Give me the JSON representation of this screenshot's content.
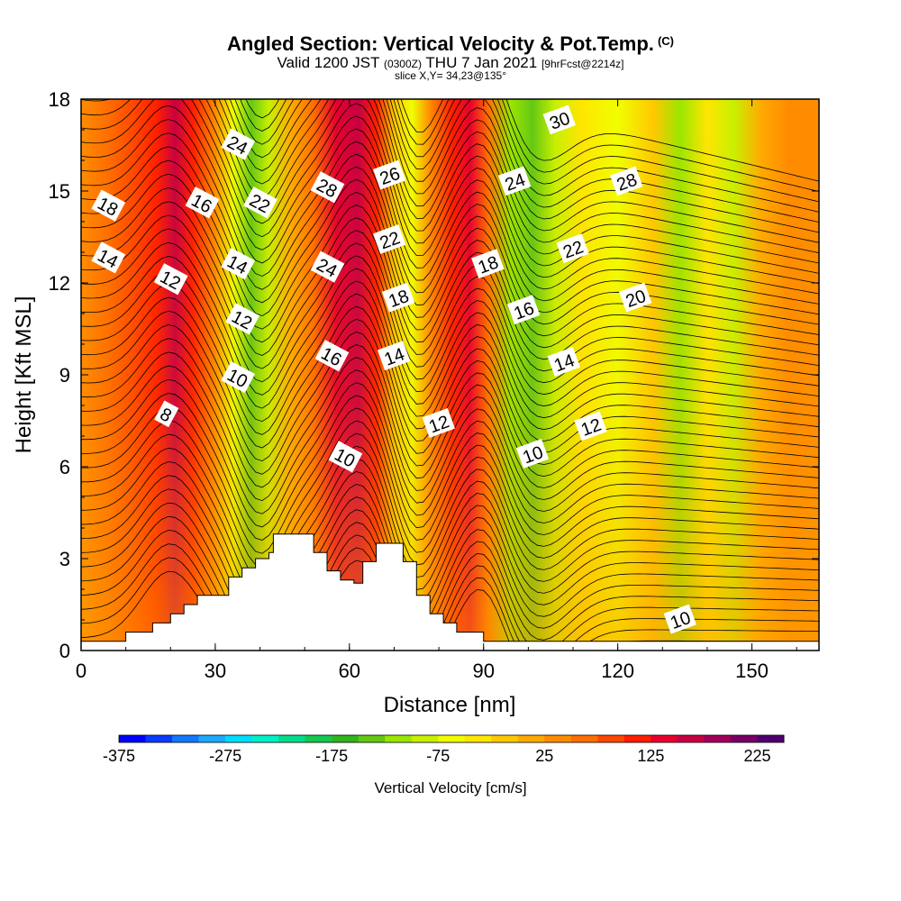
{
  "header": {
    "title": "Angled Section: Vertical Velocity & Pot.Temp.",
    "copyright": "(C)",
    "valid_prefix": "Valid 1200 JST",
    "valid_utc": "(0300Z)",
    "valid_date": "THU 7 Jan 2021",
    "forecast": "[9hrFcst@2214z]",
    "slice": "slice X,Y= 34,23@135°"
  },
  "chart_data": {
    "type": "heatmap",
    "title": "Angled Section: Vertical Velocity & Pot.Temp.",
    "xlabel": "Distance [nm]",
    "ylabel": "Height [Kft MSL]",
    "xlim": [
      0,
      165
    ],
    "ylim": [
      0,
      18
    ],
    "xticks": [
      "0",
      "30",
      "60",
      "90",
      "120",
      "150"
    ],
    "yticks": [
      "0",
      "3",
      "6",
      "9",
      "12",
      "15",
      "18"
    ],
    "colorbar": {
      "label": "Vertical Velocity [cm/s]",
      "min": -375,
      "max": 250,
      "step": 25,
      "tick_labels": [
        "-375",
        "-275",
        "-175",
        "-75",
        "25",
        "125",
        "225"
      ],
      "colors": [
        "#0000ff",
        "#0a3cff",
        "#1478ff",
        "#1eaaff",
        "#00ddff",
        "#00f0c8",
        "#00dc8c",
        "#14c850",
        "#32b41e",
        "#64c814",
        "#9be600",
        "#c8f000",
        "#f0ff00",
        "#ffe600",
        "#ffc800",
        "#ffaa00",
        "#ff8c00",
        "#ff6e00",
        "#ff4600",
        "#ff1e00",
        "#e6002d",
        "#c80041",
        "#a0005a",
        "#780064",
        "#50006e"
      ]
    },
    "terrain": [
      [
        0,
        0.3
      ],
      [
        10,
        0.3
      ],
      [
        10,
        0.6
      ],
      [
        16,
        0.6
      ],
      [
        16,
        0.9
      ],
      [
        20,
        0.9
      ],
      [
        20,
        1.2
      ],
      [
        23,
        1.2
      ],
      [
        23,
        1.5
      ],
      [
        26,
        1.5
      ],
      [
        26,
        1.8
      ],
      [
        33,
        1.8
      ],
      [
        33,
        2.4
      ],
      [
        36,
        2.4
      ],
      [
        36,
        2.7
      ],
      [
        39,
        2.7
      ],
      [
        39,
        3.0
      ],
      [
        42,
        3.0
      ],
      [
        42,
        3.2
      ],
      [
        43,
        3.2
      ],
      [
        43,
        3.8
      ],
      [
        52,
        3.8
      ],
      [
        52,
        3.2
      ],
      [
        55,
        3.2
      ],
      [
        55,
        2.6
      ],
      [
        58,
        2.6
      ],
      [
        58,
        2.3
      ],
      [
        61,
        2.3
      ],
      [
        61,
        2.2
      ],
      [
        63,
        2.2
      ],
      [
        63,
        2.9
      ],
      [
        66,
        2.9
      ],
      [
        66,
        3.5
      ],
      [
        72,
        3.5
      ],
      [
        72,
        2.9
      ],
      [
        75,
        2.9
      ],
      [
        75,
        1.8
      ],
      [
        78,
        1.8
      ],
      [
        78,
        1.2
      ],
      [
        81,
        1.2
      ],
      [
        81,
        0.9
      ],
      [
        84,
        0.9
      ],
      [
        84,
        0.6
      ],
      [
        90,
        0.6
      ],
      [
        90,
        0.3
      ],
      [
        165,
        0.3
      ]
    ],
    "velocity_bands": [
      {
        "x": 0,
        "value": 40
      },
      {
        "x": 6,
        "value": 50
      },
      {
        "x": 12,
        "value": 75
      },
      {
        "x": 17,
        "value": 120
      },
      {
        "x": 21,
        "value": 160
      },
      {
        "x": 25,
        "value": 110
      },
      {
        "x": 30,
        "value": 40
      },
      {
        "x": 34,
        "value": -60
      },
      {
        "x": 38,
        "value": -130
      },
      {
        "x": 42,
        "value": -90
      },
      {
        "x": 47,
        "value": 0
      },
      {
        "x": 52,
        "value": 70
      },
      {
        "x": 57,
        "value": 130
      },
      {
        "x": 62,
        "value": 150
      },
      {
        "x": 66,
        "value": 100
      },
      {
        "x": 70,
        "value": -20
      },
      {
        "x": 74,
        "value": -60
      },
      {
        "x": 78,
        "value": 40
      },
      {
        "x": 83,
        "value": 110
      },
      {
        "x": 87,
        "value": 140
      },
      {
        "x": 91,
        "value": 70
      },
      {
        "x": 96,
        "value": -120
      },
      {
        "x": 101,
        "value": -150
      },
      {
        "x": 106,
        "value": -100
      },
      {
        "x": 112,
        "value": -40
      },
      {
        "x": 120,
        "value": -60
      },
      {
        "x": 128,
        "value": -20
      },
      {
        "x": 134,
        "value": -110
      },
      {
        "x": 140,
        "value": -40
      },
      {
        "x": 146,
        "value": -90
      },
      {
        "x": 152,
        "value": 10
      },
      {
        "x": 158,
        "value": 30
      },
      {
        "x": 165,
        "value": 30
      }
    ],
    "contour_labels": [
      {
        "text": "30",
        "x": 107,
        "y": 17.3
      },
      {
        "text": "24",
        "x": 35,
        "y": 16.5
      },
      {
        "text": "26",
        "x": 69,
        "y": 15.5
      },
      {
        "text": "28",
        "x": 55,
        "y": 15.1
      },
      {
        "text": "24",
        "x": 97,
        "y": 15.3
      },
      {
        "text": "28",
        "x": 122,
        "y": 15.3
      },
      {
        "text": "18",
        "x": 6,
        "y": 14.5
      },
      {
        "text": "16",
        "x": 27,
        "y": 14.6
      },
      {
        "text": "22",
        "x": 40,
        "y": 14.6
      },
      {
        "text": "22",
        "x": 69,
        "y": 13.4
      },
      {
        "text": "22",
        "x": 110,
        "y": 13.1
      },
      {
        "text": "14",
        "x": 6,
        "y": 12.8
      },
      {
        "text": "14",
        "x": 35,
        "y": 12.6
      },
      {
        "text": "24",
        "x": 55,
        "y": 12.5
      },
      {
        "text": "18",
        "x": 91,
        "y": 12.6
      },
      {
        "text": "12",
        "x": 20,
        "y": 12.1
      },
      {
        "text": "18",
        "x": 71,
        "y": 11.5
      },
      {
        "text": "20",
        "x": 124,
        "y": 11.5
      },
      {
        "text": "16",
        "x": 99,
        "y": 11.1
      },
      {
        "text": "12",
        "x": 36,
        "y": 10.8
      },
      {
        "text": "16",
        "x": 56,
        "y": 9.6
      },
      {
        "text": "14",
        "x": 70,
        "y": 9.6
      },
      {
        "text": "14",
        "x": 108,
        "y": 9.4
      },
      {
        "text": "10",
        "x": 35,
        "y": 8.9
      },
      {
        "text": "8",
        "x": 19,
        "y": 7.7
      },
      {
        "text": "12",
        "x": 80,
        "y": 7.4
      },
      {
        "text": "12",
        "x": 114,
        "y": 7.3
      },
      {
        "text": "10",
        "x": 59,
        "y": 6.3
      },
      {
        "text": "10",
        "x": 101,
        "y": 6.4
      },
      {
        "text": "10",
        "x": 134,
        "y": 1.0
      }
    ]
  }
}
